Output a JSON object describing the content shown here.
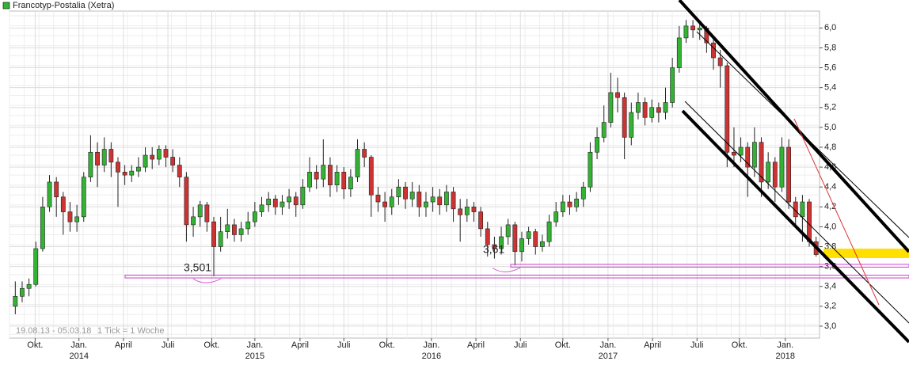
{
  "chart_data": {
    "type": "candlestick",
    "series": [
      {
        "name": "Francotyp-Postalia (Xetra)",
        "up_color": "#33b233",
        "down_color": "#cc3333",
        "open": [
          3.2,
          3.3,
          3.38,
          3.42,
          3.78,
          4.2,
          4.45,
          4.3,
          4.15,
          4.05,
          4.1,
          4.5,
          4.75,
          4.62,
          4.78,
          4.65,
          4.55,
          4.52,
          4.56,
          4.6,
          4.72,
          4.68,
          4.78,
          4.7,
          4.62,
          4.5,
          4.02,
          4.1,
          4.22,
          4.05,
          3.8,
          3.95,
          4.02,
          3.92,
          3.98,
          4.05,
          4.15,
          4.22,
          4.28,
          4.2,
          4.25,
          4.3,
          4.22,
          4.4,
          4.55,
          4.48,
          4.62,
          4.42,
          4.55,
          4.38,
          4.5,
          4.78,
          4.7,
          4.32,
          4.25,
          4.2,
          4.3,
          4.4,
          4.28,
          4.35,
          4.2,
          4.25,
          4.3,
          4.22,
          4.35,
          4.18,
          4.12,
          4.2,
          4.15,
          3.98,
          3.82,
          3.78,
          3.9,
          4.02,
          3.75,
          3.88,
          3.95,
          3.8,
          3.85,
          4.05,
          4.15,
          4.25,
          4.2,
          4.28,
          4.4,
          4.75,
          4.9,
          5.05,
          5.35,
          5.3,
          4.9,
          5.15,
          5.25,
          5.1,
          5.2,
          5.15,
          5.25,
          5.6,
          5.9,
          6.02,
          5.98,
          6.0,
          5.85,
          5.7,
          5.62,
          4.75,
          4.72,
          4.8,
          4.6,
          4.85,
          4.45,
          4.65,
          4.4,
          4.8,
          4.25,
          4.1,
          4.25,
          3.85
        ],
        "high": [
          3.45,
          3.45,
          3.48,
          3.85,
          4.3,
          4.52,
          4.5,
          4.35,
          4.25,
          4.22,
          4.55,
          4.92,
          4.85,
          4.9,
          4.85,
          4.7,
          4.62,
          4.62,
          4.7,
          4.8,
          4.8,
          4.82,
          4.82,
          4.78,
          4.7,
          4.55,
          4.2,
          4.26,
          4.25,
          4.1,
          4.1,
          4.18,
          4.08,
          4.05,
          4.15,
          4.25,
          4.3,
          4.35,
          4.32,
          4.32,
          4.38,
          4.35,
          4.48,
          4.7,
          4.62,
          4.88,
          4.7,
          4.62,
          4.6,
          4.58,
          4.88,
          4.85,
          4.72,
          4.4,
          4.35,
          4.38,
          4.48,
          4.45,
          4.45,
          4.42,
          4.35,
          4.4,
          4.38,
          4.42,
          4.4,
          4.28,
          4.28,
          4.25,
          4.2,
          4.05,
          3.9,
          4.0,
          4.08,
          4.05,
          3.95,
          4.0,
          3.98,
          3.92,
          4.12,
          4.25,
          4.32,
          4.32,
          4.35,
          4.45,
          4.85,
          5.0,
          5.22,
          5.55,
          5.5,
          5.35,
          5.25,
          5.35,
          5.3,
          5.28,
          5.25,
          5.4,
          5.7,
          6.02,
          6.08,
          6.08,
          6.05,
          6.02,
          5.9,
          5.78,
          5.65,
          5.0,
          4.9,
          4.85,
          5.0,
          4.9,
          4.75,
          4.7,
          4.9,
          4.88,
          4.3,
          4.32,
          4.28,
          3.9
        ],
        "low": [
          3.12,
          3.24,
          3.3,
          3.4,
          3.75,
          4.15,
          4.1,
          3.92,
          3.95,
          3.95,
          4.05,
          4.45,
          4.4,
          4.55,
          4.5,
          4.2,
          4.42,
          4.45,
          4.5,
          4.55,
          4.58,
          4.62,
          4.6,
          4.55,
          4.4,
          3.85,
          3.9,
          4.0,
          3.95,
          3.501,
          3.75,
          3.88,
          3.85,
          3.85,
          3.92,
          4.0,
          4.1,
          4.15,
          4.12,
          4.12,
          4.18,
          4.1,
          4.18,
          4.35,
          4.38,
          4.4,
          4.3,
          4.35,
          4.28,
          4.3,
          4.45,
          4.6,
          4.1,
          4.15,
          4.05,
          4.12,
          4.22,
          4.18,
          4.2,
          4.1,
          4.1,
          4.15,
          4.12,
          4.15,
          4.05,
          3.85,
          4.05,
          4.05,
          3.9,
          3.7,
          3.68,
          3.72,
          3.82,
          3.61,
          3.65,
          3.82,
          3.72,
          3.75,
          3.8,
          4.0,
          4.1,
          4.12,
          4.15,
          4.2,
          4.35,
          4.68,
          4.85,
          5.0,
          5.15,
          4.68,
          4.82,
          5.08,
          5.02,
          5.05,
          5.05,
          5.08,
          5.2,
          5.55,
          5.85,
          5.9,
          5.88,
          5.75,
          5.58,
          5.4,
          4.6,
          4.6,
          4.65,
          4.3,
          4.5,
          4.3,
          4.38,
          4.25,
          4.35,
          4.18,
          4.0,
          3.85,
          3.8,
          3.7
        ],
        "close": [
          3.3,
          3.38,
          3.42,
          3.78,
          4.2,
          4.45,
          4.3,
          4.15,
          4.05,
          4.1,
          4.5,
          4.75,
          4.62,
          4.78,
          4.65,
          4.55,
          4.52,
          4.56,
          4.6,
          4.72,
          4.68,
          4.78,
          4.7,
          4.62,
          4.5,
          4.02,
          4.1,
          4.22,
          4.05,
          3.8,
          3.95,
          4.02,
          3.92,
          3.98,
          4.05,
          4.15,
          4.22,
          4.28,
          4.2,
          4.25,
          4.3,
          4.22,
          4.4,
          4.55,
          4.48,
          4.62,
          4.42,
          4.55,
          4.38,
          4.5,
          4.78,
          4.7,
          4.32,
          4.25,
          4.2,
          4.3,
          4.4,
          4.28,
          4.35,
          4.2,
          4.25,
          4.3,
          4.22,
          4.35,
          4.18,
          4.12,
          4.2,
          4.15,
          3.98,
          3.82,
          3.78,
          3.9,
          4.02,
          3.75,
          3.88,
          3.95,
          3.8,
          3.85,
          4.05,
          4.15,
          4.25,
          4.2,
          4.28,
          4.4,
          4.75,
          4.9,
          5.05,
          5.35,
          5.3,
          4.9,
          5.15,
          5.25,
          5.1,
          5.2,
          5.15,
          5.25,
          5.6,
          5.9,
          6.02,
          5.98,
          6.0,
          5.85,
          5.7,
          5.62,
          4.75,
          4.72,
          4.8,
          4.6,
          4.85,
          4.45,
          4.65,
          4.4,
          4.8,
          4.25,
          4.1,
          4.25,
          3.85,
          3.72
        ]
      }
    ],
    "xlim": [
      -0.5,
      117.5
    ],
    "ylim": [
      2.88,
      6.17
    ],
    "xticks": [
      {
        "value": 2.9,
        "label": "Okt."
      },
      {
        "value": 9.3,
        "label": "Jan."
      },
      {
        "value": 15.8,
        "label": "April"
      },
      {
        "value": 22.3,
        "label": "Juli"
      },
      {
        "value": 28.7,
        "label": "Okt."
      },
      {
        "value": 35.0,
        "label": "Jan."
      },
      {
        "value": 41.6,
        "label": "April"
      },
      {
        "value": 48.0,
        "label": "Juli"
      },
      {
        "value": 54.3,
        "label": "Okt."
      },
      {
        "value": 60.8,
        "label": "Jan."
      },
      {
        "value": 67.3,
        "label": "April"
      },
      {
        "value": 73.8,
        "label": "Juli"
      },
      {
        "value": 80.0,
        "label": "Okt."
      },
      {
        "value": 86.6,
        "label": "Jan."
      },
      {
        "value": 93.1,
        "label": "April"
      },
      {
        "value": 99.6,
        "label": "Juli"
      },
      {
        "value": 105.8,
        "label": "Okt."
      },
      {
        "value": 112.5,
        "label": "Jan."
      }
    ],
    "years": [
      {
        "value": 9.3,
        "label": "2014"
      },
      {
        "value": 35.0,
        "label": "2015"
      },
      {
        "value": 60.8,
        "label": "2016"
      },
      {
        "value": 86.6,
        "label": "2017"
      },
      {
        "value": 112.5,
        "label": "2018"
      }
    ],
    "yticks": [
      {
        "value": 3.0,
        "label": "3,0"
      },
      {
        "value": 3.2,
        "label": "3,2"
      },
      {
        "value": 3.4,
        "label": "3,4"
      },
      {
        "value": 3.6,
        "label": "3,6"
      },
      {
        "value": 3.8,
        "label": "3,8"
      },
      {
        "value": 4.0,
        "label": "4,0"
      },
      {
        "value": 4.2,
        "label": "4,2"
      },
      {
        "value": 4.4,
        "label": "4,4"
      },
      {
        "value": 4.6,
        "label": "4,6"
      },
      {
        "value": 4.8,
        "label": "4,8"
      },
      {
        "value": 5.0,
        "label": "5,0"
      },
      {
        "value": 5.2,
        "label": "5,2"
      },
      {
        "value": 5.4,
        "label": "5,4"
      },
      {
        "value": 5.6,
        "label": "5,6"
      },
      {
        "value": 5.8,
        "label": "5,8"
      },
      {
        "value": 6.0,
        "label": "6,0"
      }
    ],
    "annotations": [
      {
        "value": 3.501,
        "label": "3,501"
      },
      {
        "value": 3.61,
        "label": "3,61"
      }
    ],
    "period": "19.08.13 - 05.03.18",
    "tick_note": "1 Tick = 1 Woche",
    "grid": true
  }
}
